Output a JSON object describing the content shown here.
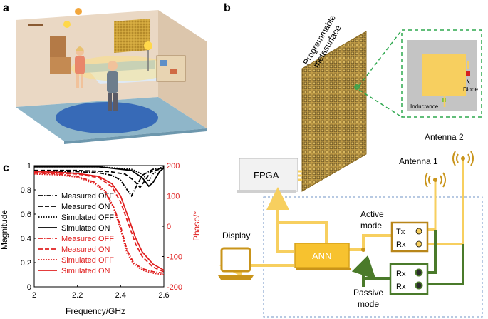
{
  "panels": {
    "a": "a",
    "b": "b",
    "c": "c"
  },
  "diagram": {
    "metasurface_label_1": "Programmable",
    "metasurface_label_2": "metasurface",
    "fpga": "FPGA",
    "ann": "ANN",
    "display": "Display",
    "antenna1": "Antenna 1",
    "antenna2": "Antenna 2",
    "active_mode_1": "Active",
    "active_mode_2": "mode",
    "passive_mode_1": "Passive",
    "passive_mode_2": "mode",
    "tx": "Tx",
    "rx": "Rx",
    "diode": "Diode",
    "inductance": "Inductance"
  },
  "colors": {
    "yellow": "#f7cf5f",
    "gold": "#c9941a",
    "green": "#4a7a2a",
    "red": "#e02020",
    "dashed_green": "#2fa84f",
    "dashed_blue": "#6f93c4"
  },
  "chart_data": {
    "type": "line",
    "xlabel": "Frequency/GHz",
    "ylabel_left": "Magnitude",
    "ylabel_right": "Phase/°",
    "xlim": [
      2.0,
      2.6
    ],
    "ylim_left": [
      0.0,
      1.0
    ],
    "ylim_right": [
      -200,
      200
    ],
    "xticks": [
      "2",
      "2.2",
      "2.4",
      "2.6"
    ],
    "yticks_left": [
      "0",
      "0.2",
      "0.4",
      "0.6",
      "0.8",
      "1"
    ],
    "yticks_right": [
      "-200",
      "-100",
      "0",
      "100",
      "200"
    ],
    "legend": [
      "Measured OFF",
      "Measured ON",
      "Simulated OFF",
      "Simulated ON",
      "Measured OFF",
      "Measured ON",
      "Simulated OFF",
      "Simulated ON"
    ],
    "series": [
      {
        "name": "Measured OFF",
        "axis": "left",
        "color": "#000000",
        "dash": "dashdot",
        "x": [
          2.0,
          2.2,
          2.3,
          2.36,
          2.4,
          2.43,
          2.45,
          2.47,
          2.5,
          2.55,
          2.6
        ],
        "y": [
          0.95,
          0.95,
          0.94,
          0.92,
          0.88,
          0.8,
          0.75,
          0.82,
          0.92,
          0.97,
          0.98
        ]
      },
      {
        "name": "Measured ON",
        "axis": "left",
        "color": "#000000",
        "dash": "dash",
        "x": [
          2.0,
          2.2,
          2.35,
          2.42,
          2.46,
          2.49,
          2.51,
          2.54,
          2.6
        ],
        "y": [
          0.96,
          0.96,
          0.95,
          0.93,
          0.88,
          0.82,
          0.87,
          0.95,
          0.98
        ]
      },
      {
        "name": "Simulated OFF",
        "axis": "left",
        "color": "#000000",
        "dash": "dot",
        "x": [
          2.0,
          2.3,
          2.45,
          2.5,
          2.53,
          2.55,
          2.58,
          2.6
        ],
        "y": [
          0.99,
          0.99,
          0.97,
          0.93,
          0.87,
          0.93,
          0.98,
          0.99
        ]
      },
      {
        "name": "Simulated ON",
        "axis": "left",
        "color": "#000000",
        "dash": "solid",
        "x": [
          2.0,
          2.3,
          2.45,
          2.5,
          2.53,
          2.55,
          2.58,
          2.6
        ],
        "y": [
          0.99,
          0.99,
          0.96,
          0.9,
          0.83,
          0.86,
          0.95,
          0.98
        ]
      },
      {
        "name": "Measured OFF",
        "axis": "right",
        "color": "#e02020",
        "dash": "dashdot",
        "x": [
          2.0,
          2.1,
          2.2,
          2.28,
          2.33,
          2.37,
          2.4,
          2.43,
          2.46,
          2.5,
          2.55,
          2.6
        ],
        "y": [
          175,
          173,
          165,
          145,
          115,
          60,
          0,
          -80,
          -120,
          -140,
          -150,
          -155
        ]
      },
      {
        "name": "Measured ON",
        "axis": "right",
        "color": "#e02020",
        "dash": "dash",
        "x": [
          2.0,
          2.1,
          2.2,
          2.3,
          2.36,
          2.4,
          2.44,
          2.47,
          2.5,
          2.55,
          2.6
        ],
        "y": [
          178,
          176,
          172,
          160,
          130,
          80,
          0,
          -60,
          -100,
          -135,
          -150
        ]
      },
      {
        "name": "Simulated OFF",
        "axis": "right",
        "color": "#e02020",
        "dash": "dot",
        "x": [
          2.0,
          2.1,
          2.2,
          2.28,
          2.33,
          2.37,
          2.4,
          2.43,
          2.46,
          2.5,
          2.55,
          2.6
        ],
        "y": [
          172,
          170,
          162,
          140,
          110,
          55,
          -10,
          -90,
          -125,
          -145,
          -155,
          -160
        ]
      },
      {
        "name": "Simulated ON",
        "axis": "right",
        "color": "#e02020",
        "dash": "solid",
        "x": [
          2.0,
          2.1,
          2.2,
          2.3,
          2.36,
          2.4,
          2.44,
          2.47,
          2.5,
          2.55,
          2.6
        ],
        "y": [
          180,
          178,
          174,
          164,
          140,
          100,
          20,
          -40,
          -85,
          -125,
          -145
        ]
      }
    ]
  }
}
